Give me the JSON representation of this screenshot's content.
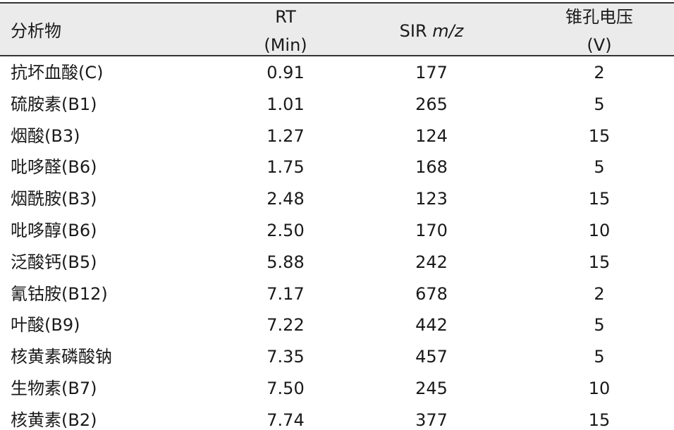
{
  "table": {
    "header": [
      [
        "分析物"
      ],
      [
        "RT",
        "(Min)"
      ],
      {
        "text": "SIR",
        "italic": "m/z"
      },
      [
        "锥孔电压",
        "(V)"
      ]
    ],
    "rows": [
      [
        "抗坏血酸(C)",
        "0.91",
        "177",
        "2"
      ],
      [
        "硫胺素(B1)",
        "1.01",
        "265",
        "5"
      ],
      [
        "烟酸(B3)",
        "1.27",
        "124",
        "15"
      ],
      [
        "吡哆醛(B6)",
        "1.75",
        "168",
        "5"
      ],
      [
        "烟酰胺(B3)",
        "2.48",
        "123",
        "15"
      ],
      [
        "吡哆醇(B6)",
        "2.50",
        "170",
        "10"
      ],
      [
        "泛酸钙(B5)",
        "5.88",
        "242",
        "15"
      ],
      [
        "氰钴胺(B12)",
        "7.17",
        "678",
        "2"
      ],
      [
        "叶酸(B9)",
        "7.22",
        "442",
        "5"
      ],
      [
        "核黄素磷酸钠",
        "7.35",
        "457",
        "5"
      ],
      [
        "生物素(B7)",
        "7.50",
        "245",
        "10"
      ],
      [
        "核黄素(B2)",
        "7.74",
        "377",
        "15"
      ]
    ]
  }
}
